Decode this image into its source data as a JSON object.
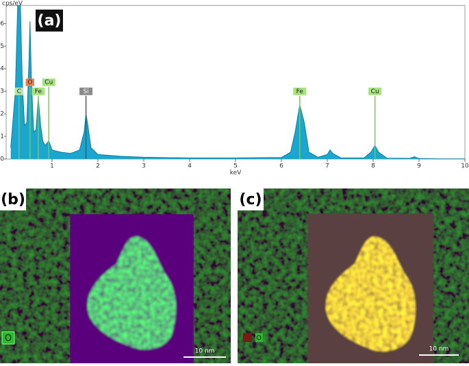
{
  "chart_data": {
    "type": "area",
    "panel_label": "(a)",
    "y_label": "cps/eV",
    "x_label": "keV",
    "color": "#1aa6cf",
    "x": [
      0.1,
      0.2,
      0.25,
      0.28,
      0.31,
      0.35,
      0.4,
      0.45,
      0.5,
      0.52,
      0.55,
      0.6,
      0.65,
      0.7,
      0.75,
      0.8,
      0.85,
      0.93,
      1.0,
      1.1,
      1.2,
      1.4,
      1.6,
      1.7,
      1.74,
      1.78,
      1.85,
      2.0,
      2.5,
      3,
      4,
      5,
      6,
      6.2,
      6.3,
      6.4,
      6.5,
      6.6,
      6.8,
      7,
      7.06,
      7.12,
      7.3,
      7.8,
      7.95,
      8.04,
      8.12,
      8.3,
      8.8,
      8.9,
      9,
      9.5,
      10
    ],
    "values": [
      0.5,
      3.0,
      6.8,
      6.8,
      6.8,
      3.5,
      1.5,
      1.6,
      4.5,
      6.1,
      3.5,
      1.2,
      1.3,
      2.7,
      1.5,
      0.8,
      0.6,
      0.8,
      0.4,
      0.35,
      0.3,
      0.25,
      0.4,
      1.2,
      2.0,
      1.5,
      0.5,
      0.2,
      0.12,
      0.08,
      0.05,
      0.05,
      0.07,
      0.3,
      1.2,
      2.4,
      1.6,
      0.3,
      0.08,
      0.2,
      0.4,
      0.25,
      0.05,
      0.05,
      0.3,
      0.6,
      0.3,
      0.04,
      0.03,
      0.1,
      0.02,
      0.01,
      0.01
    ],
    "xlim": [
      0,
      10
    ],
    "ylim": [
      0,
      6.8
    ],
    "xticks": [
      1,
      2,
      3,
      4,
      5,
      6,
      7,
      8,
      9,
      10
    ],
    "yticks": [
      0,
      1,
      2,
      3,
      4,
      5,
      6
    ],
    "annotations": [
      {
        "label": "C",
        "x": 0.28,
        "y": 2.8,
        "color": "#b5e6b0"
      },
      {
        "label": "O",
        "x": 0.52,
        "y": 3.2,
        "color": "#e8804f"
      },
      {
        "label": "Fe",
        "x": 0.7,
        "y": 2.8,
        "color": "#a6e27e"
      },
      {
        "label": "Cu",
        "x": 0.93,
        "y": 3.2,
        "color": "#a6e27e"
      },
      {
        "label": "Si",
        "x": 1.74,
        "y": 2.8,
        "color": "#8a8a8a"
      },
      {
        "label": "Fe",
        "x": 6.4,
        "y": 2.8,
        "color": "#a6e27e"
      },
      {
        "label": "Cu",
        "x": 8.04,
        "y": 2.8,
        "color": "#a6e27e"
      }
    ]
  },
  "maps": [
    {
      "panel_label": "(b)",
      "legend": "O",
      "scale_bar": "10 nm"
    },
    {
      "panel_label": "(c)",
      "legend": "O",
      "scale_bar": "10 nm"
    }
  ]
}
